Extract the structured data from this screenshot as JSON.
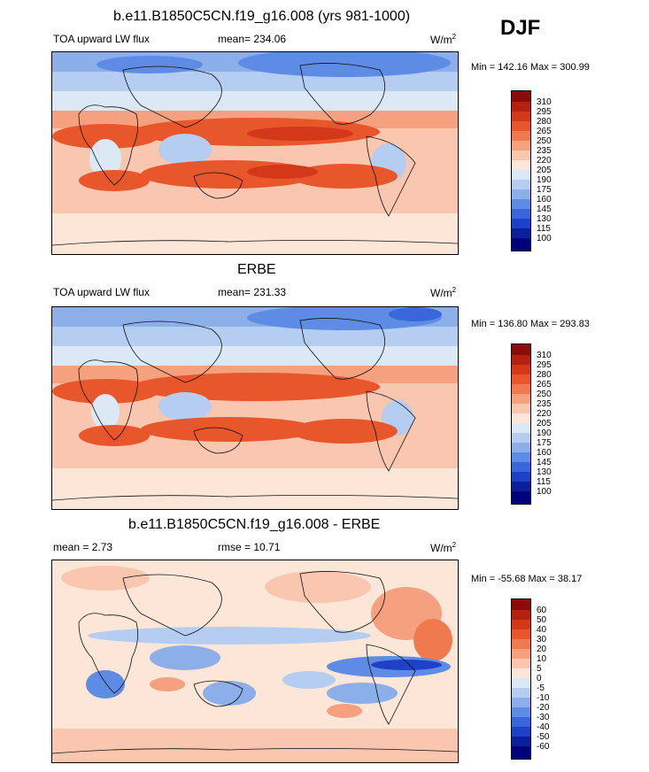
{
  "season": "DJF",
  "panels": [
    {
      "title": "b.e11.B1850C5CN.f19_g16.008 (yrs 981-1000)",
      "left_label": "TOA upward LW flux",
      "center_label": "mean= 234.06",
      "units": "W/m",
      "units_sup": "2",
      "minmax": "Min = 142.16 Max = 300.99",
      "levels": [
        "310",
        "295",
        "280",
        "265",
        "250",
        "235",
        "220",
        "205",
        "190",
        "175",
        "160",
        "145",
        "130",
        "115",
        "100"
      ]
    },
    {
      "title": "ERBE",
      "left_label": "TOA upward LW flux",
      "center_label": "mean= 231.33",
      "units": "W/m",
      "units_sup": "2",
      "minmax": "Min = 136.80 Max = 293.83",
      "levels": [
        "310",
        "295",
        "280",
        "265",
        "250",
        "235",
        "220",
        "205",
        "190",
        "175",
        "160",
        "145",
        "130",
        "115",
        "100"
      ]
    },
    {
      "title": "b.e11.B1850C5CN.f19_g16.008 - ERBE",
      "left_label": "mean =   2.73",
      "center_label": "rmse =  10.71",
      "units": "W/m",
      "units_sup": "2",
      "minmax": "Min = -55.68 Max =  38.17",
      "levels": [
        "60",
        "50",
        "40",
        "30",
        "20",
        "10",
        "5",
        "0",
        "-5",
        "-10",
        "-20",
        "-30",
        "-40",
        "-50",
        "-60"
      ]
    }
  ],
  "colors": [
    "#8b0a0a",
    "#b32211",
    "#d4381a",
    "#e8562c",
    "#f07a4f",
    "#f5a07f",
    "#f9c7b0",
    "#fbe6d8",
    "#dbe9f7",
    "#b4cdf0",
    "#8caee9",
    "#5e8be3",
    "#3a66dc",
    "#1f40c8",
    "#0c1f9a",
    "#00007a"
  ]
}
